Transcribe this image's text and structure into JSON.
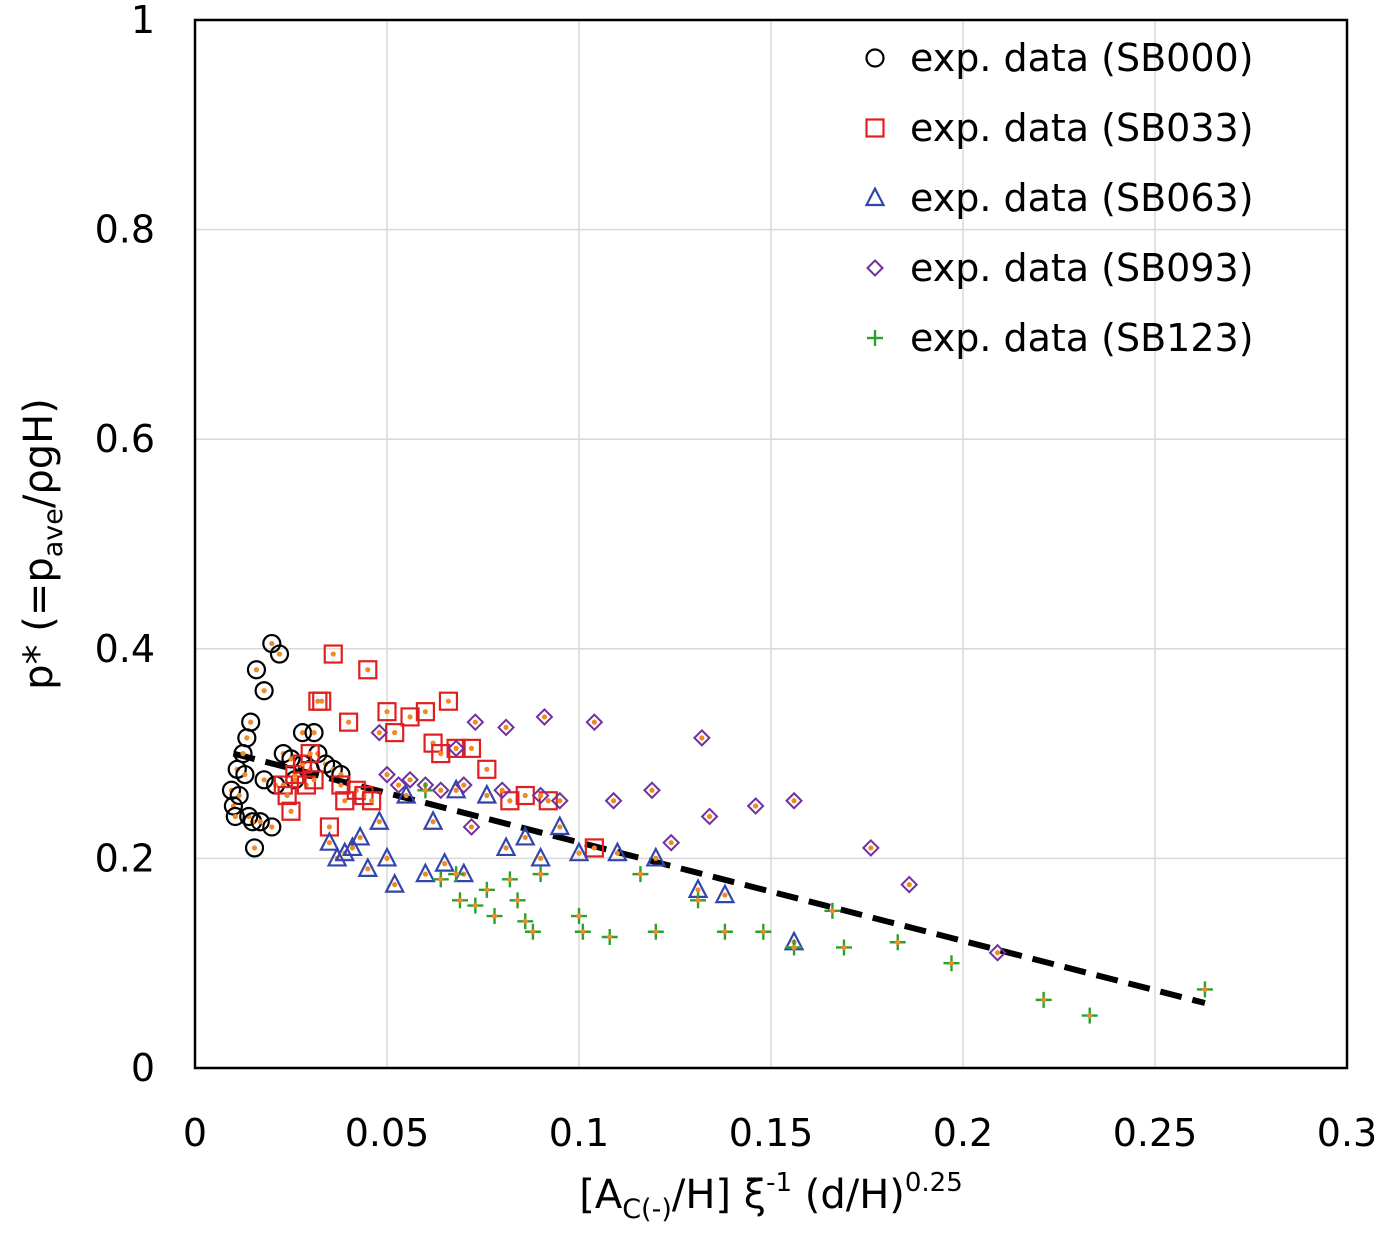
{
  "chart_data": {
    "type": "scatter",
    "title": "",
    "xlabel": {
      "main": "[A",
      "sub": "C(-)",
      "mid": "/H] ξ",
      "sup1": "-1",
      "tail": " (d/H)",
      "sup2": "0.25"
    },
    "ylabel": {
      "main": "p* (=p",
      "sub": "ave",
      "tail": "/ρgH)"
    },
    "xlim": [
      0,
      0.3
    ],
    "ylim": [
      0,
      1
    ],
    "xticks": [
      "0",
      "0.05",
      "0.1",
      "0.15",
      "0.2",
      "0.25",
      "0.3"
    ],
    "yticks": [
      "0",
      "0.2",
      "0.4",
      "0.6",
      "0.8",
      "1"
    ],
    "xtick_values": [
      0,
      0.05,
      0.1,
      0.15,
      0.2,
      0.25,
      0.3
    ],
    "ytick_values": [
      0,
      0.2,
      0.4,
      0.6,
      0.8,
      1.0
    ],
    "grid": true,
    "legend_position": "top-right",
    "series": [
      {
        "name": "exp. data (SB000)",
        "marker": "circle",
        "color": "#000000",
        "points": [
          [
            0.0095,
            0.265
          ],
          [
            0.01,
            0.25
          ],
          [
            0.0105,
            0.24
          ],
          [
            0.011,
            0.285
          ],
          [
            0.0115,
            0.26
          ],
          [
            0.0125,
            0.3
          ],
          [
            0.013,
            0.28
          ],
          [
            0.0135,
            0.315
          ],
          [
            0.014,
            0.24
          ],
          [
            0.0145,
            0.33
          ],
          [
            0.015,
            0.235
          ],
          [
            0.0155,
            0.21
          ],
          [
            0.016,
            0.38
          ],
          [
            0.017,
            0.235
          ],
          [
            0.018,
            0.275
          ],
          [
            0.018,
            0.36
          ],
          [
            0.02,
            0.23
          ],
          [
            0.02,
            0.405
          ],
          [
            0.021,
            0.27
          ],
          [
            0.022,
            0.395
          ],
          [
            0.023,
            0.3
          ],
          [
            0.025,
            0.295
          ],
          [
            0.026,
            0.275
          ],
          [
            0.028,
            0.29
          ],
          [
            0.028,
            0.32
          ],
          [
            0.03,
            0.285
          ],
          [
            0.031,
            0.32
          ],
          [
            0.032,
            0.3
          ],
          [
            0.034,
            0.29
          ],
          [
            0.036,
            0.285
          ],
          [
            0.038,
            0.28
          ]
        ]
      },
      {
        "name": "exp. data (SB033)",
        "marker": "square",
        "color": "#e02020",
        "points": [
          [
            0.023,
            0.27
          ],
          [
            0.024,
            0.26
          ],
          [
            0.025,
            0.245
          ],
          [
            0.026,
            0.28
          ],
          [
            0.028,
            0.29
          ],
          [
            0.029,
            0.27
          ],
          [
            0.03,
            0.3
          ],
          [
            0.031,
            0.275
          ],
          [
            0.032,
            0.35
          ],
          [
            0.033,
            0.35
          ],
          [
            0.035,
            0.23
          ],
          [
            0.036,
            0.395
          ],
          [
            0.038,
            0.27
          ],
          [
            0.039,
            0.255
          ],
          [
            0.04,
            0.33
          ],
          [
            0.042,
            0.265
          ],
          [
            0.044,
            0.26
          ],
          [
            0.045,
            0.38
          ],
          [
            0.046,
            0.255
          ],
          [
            0.05,
            0.34
          ],
          [
            0.052,
            0.32
          ],
          [
            0.056,
            0.335
          ],
          [
            0.06,
            0.34
          ],
          [
            0.062,
            0.31
          ],
          [
            0.064,
            0.3
          ],
          [
            0.066,
            0.35
          ],
          [
            0.068,
            0.305
          ],
          [
            0.072,
            0.305
          ],
          [
            0.076,
            0.285
          ],
          [
            0.082,
            0.255
          ],
          [
            0.086,
            0.26
          ],
          [
            0.092,
            0.255
          ],
          [
            0.104,
            0.21
          ]
        ]
      },
      {
        "name": "exp. data (SB063)",
        "marker": "triangle",
        "color": "#3344aa",
        "points": [
          [
            0.035,
            0.215
          ],
          [
            0.037,
            0.2
          ],
          [
            0.039,
            0.205
          ],
          [
            0.041,
            0.21
          ],
          [
            0.043,
            0.22
          ],
          [
            0.045,
            0.19
          ],
          [
            0.048,
            0.235
          ],
          [
            0.05,
            0.2
          ],
          [
            0.052,
            0.175
          ],
          [
            0.055,
            0.26
          ],
          [
            0.06,
            0.185
          ],
          [
            0.062,
            0.235
          ],
          [
            0.065,
            0.195
          ],
          [
            0.068,
            0.265
          ],
          [
            0.07,
            0.185
          ],
          [
            0.076,
            0.26
          ],
          [
            0.081,
            0.21
          ],
          [
            0.086,
            0.22
          ],
          [
            0.09,
            0.2
          ],
          [
            0.095,
            0.23
          ],
          [
            0.1,
            0.205
          ],
          [
            0.11,
            0.205
          ],
          [
            0.12,
            0.2
          ],
          [
            0.131,
            0.17
          ],
          [
            0.138,
            0.165
          ],
          [
            0.156,
            0.12
          ]
        ]
      },
      {
        "name": "exp. data (SB093)",
        "marker": "diamond",
        "color": "#7030a0",
        "points": [
          [
            0.048,
            0.32
          ],
          [
            0.05,
            0.28
          ],
          [
            0.053,
            0.27
          ],
          [
            0.056,
            0.275
          ],
          [
            0.06,
            0.27
          ],
          [
            0.064,
            0.265
          ],
          [
            0.068,
            0.305
          ],
          [
            0.07,
            0.27
          ],
          [
            0.072,
            0.23
          ],
          [
            0.073,
            0.33
          ],
          [
            0.08,
            0.265
          ],
          [
            0.081,
            0.325
          ],
          [
            0.09,
            0.26
          ],
          [
            0.091,
            0.335
          ],
          [
            0.095,
            0.255
          ],
          [
            0.104,
            0.33
          ],
          [
            0.109,
            0.255
          ],
          [
            0.119,
            0.265
          ],
          [
            0.124,
            0.215
          ],
          [
            0.132,
            0.315
          ],
          [
            0.134,
            0.24
          ],
          [
            0.146,
            0.25
          ],
          [
            0.156,
            0.255
          ],
          [
            0.176,
            0.21
          ],
          [
            0.186,
            0.175
          ],
          [
            0.209,
            0.11
          ]
        ]
      },
      {
        "name": "exp. data (SB123)",
        "marker": "plus",
        "color": "#2ca02c",
        "points": [
          [
            0.06,
            0.265
          ],
          [
            0.064,
            0.18
          ],
          [
            0.068,
            0.185
          ],
          [
            0.069,
            0.16
          ],
          [
            0.073,
            0.155
          ],
          [
            0.076,
            0.17
          ],
          [
            0.078,
            0.145
          ],
          [
            0.082,
            0.18
          ],
          [
            0.084,
            0.16
          ],
          [
            0.086,
            0.14
          ],
          [
            0.088,
            0.13
          ],
          [
            0.09,
            0.185
          ],
          [
            0.1,
            0.145
          ],
          [
            0.101,
            0.13
          ],
          [
            0.108,
            0.125
          ],
          [
            0.116,
            0.185
          ],
          [
            0.12,
            0.13
          ],
          [
            0.131,
            0.16
          ],
          [
            0.138,
            0.13
          ],
          [
            0.148,
            0.13
          ],
          [
            0.156,
            0.115
          ],
          [
            0.166,
            0.15
          ],
          [
            0.169,
            0.115
          ],
          [
            0.183,
            0.12
          ],
          [
            0.197,
            0.1
          ],
          [
            0.221,
            0.065
          ],
          [
            0.233,
            0.05
          ],
          [
            0.263,
            0.075
          ]
        ]
      }
    ],
    "fit_line": {
      "name": "trend",
      "style": "dashed",
      "color": "#000000",
      "x": [
        0.01,
        0.263
      ],
      "y": [
        0.3,
        0.062
      ]
    }
  }
}
